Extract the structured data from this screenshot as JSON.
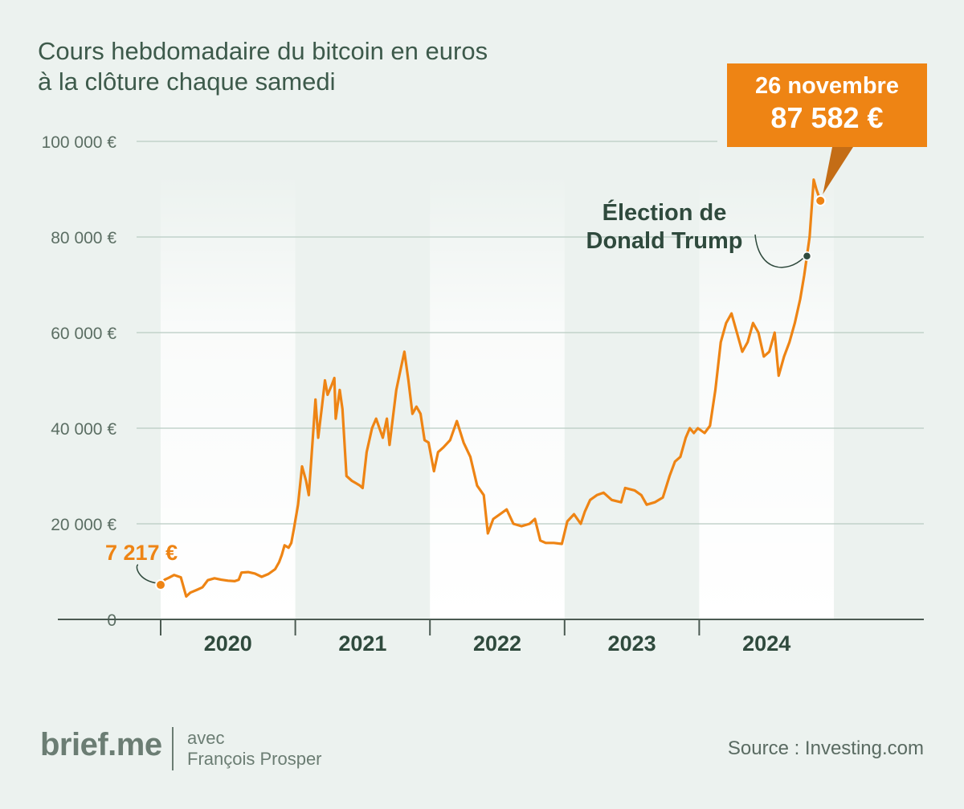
{
  "title": [
    "Cours hebdomadaire du bitcoin en euros",
    "à la clôture chaque samedi"
  ],
  "colors": {
    "line": "#ee8414",
    "accent_dark": "#2f4a3d",
    "background": "#ecf2ef"
  },
  "callout": {
    "date": "26 novembre",
    "value": "87 582 €"
  },
  "start_label": "7 217 €",
  "event_label": [
    "Élection de",
    "Donald Trump"
  ],
  "footer": {
    "logo": "brief.me",
    "with": "avec",
    "author": "François Prosper",
    "source": "Source : Investing.com"
  },
  "chart_data": {
    "type": "line",
    "title": "Cours hebdomadaire du bitcoin en euros à la clôture chaque samedi",
    "xlabel": "",
    "ylabel": "",
    "y_ticks": [
      0,
      20000,
      40000,
      60000,
      80000,
      100000
    ],
    "y_tick_labels": [
      "0",
      "20 000 €",
      "40 000 €",
      "60 000 €",
      "80 000 €",
      "100 000 €"
    ],
    "ylim": [
      0,
      100000
    ],
    "x_ticks": [
      "2020",
      "2021",
      "2022",
      "2023",
      "2024"
    ],
    "x_domain": [
      2020.0,
      2025.0
    ],
    "grid": true,
    "series": [
      {
        "values": [
          [
            2020.0,
            7217
          ],
          [
            2020.03,
            8300
          ],
          [
            2020.06,
            8700
          ],
          [
            2020.1,
            9300
          ],
          [
            2020.15,
            8800
          ],
          [
            2020.19,
            4800
          ],
          [
            2020.22,
            5600
          ],
          [
            2020.27,
            6200
          ],
          [
            2020.31,
            6700
          ],
          [
            2020.35,
            8200
          ],
          [
            2020.4,
            8600
          ],
          [
            2020.45,
            8300
          ],
          [
            2020.5,
            8100
          ],
          [
            2020.55,
            8000
          ],
          [
            2020.58,
            8300
          ],
          [
            2020.6,
            9800
          ],
          [
            2020.65,
            9900
          ],
          [
            2020.7,
            9600
          ],
          [
            2020.75,
            8900
          ],
          [
            2020.8,
            9500
          ],
          [
            2020.85,
            10500
          ],
          [
            2020.88,
            12000
          ],
          [
            2020.9,
            13500
          ],
          [
            2020.92,
            15500
          ],
          [
            2020.95,
            15000
          ],
          [
            2020.97,
            16000
          ],
          [
            2020.99,
            19000
          ],
          [
            2021.02,
            24000
          ],
          [
            2021.05,
            32000
          ],
          [
            2021.08,
            29000
          ],
          [
            2021.1,
            26000
          ],
          [
            2021.13,
            38000
          ],
          [
            2021.15,
            46000
          ],
          [
            2021.17,
            38000
          ],
          [
            2021.2,
            45000
          ],
          [
            2021.22,
            50000
          ],
          [
            2021.24,
            47000
          ],
          [
            2021.27,
            49000
          ],
          [
            2021.29,
            50500
          ],
          [
            2021.3,
            42000
          ],
          [
            2021.33,
            48000
          ],
          [
            2021.35,
            44000
          ],
          [
            2021.38,
            30000
          ],
          [
            2021.42,
            29000
          ],
          [
            2021.45,
            28500
          ],
          [
            2021.48,
            28000
          ],
          [
            2021.5,
            27500
          ],
          [
            2021.53,
            35000
          ],
          [
            2021.57,
            40000
          ],
          [
            2021.6,
            42000
          ],
          [
            2021.65,
            38000
          ],
          [
            2021.68,
            42000
          ],
          [
            2021.7,
            36500
          ],
          [
            2021.75,
            48000
          ],
          [
            2021.78,
            52000
          ],
          [
            2021.81,
            56000
          ],
          [
            2021.84,
            50000
          ],
          [
            2021.87,
            43000
          ],
          [
            2021.9,
            44500
          ],
          [
            2021.93,
            43000
          ],
          [
            2021.96,
            37500
          ],
          [
            2021.99,
            37000
          ],
          [
            2022.03,
            31000
          ],
          [
            2022.06,
            35000
          ],
          [
            2022.1,
            36000
          ],
          [
            2022.15,
            37500
          ],
          [
            2022.2,
            41500
          ],
          [
            2022.25,
            37000
          ],
          [
            2022.3,
            34000
          ],
          [
            2022.35,
            28000
          ],
          [
            2022.4,
            26000
          ],
          [
            2022.43,
            18000
          ],
          [
            2022.47,
            21000
          ],
          [
            2022.52,
            22000
          ],
          [
            2022.57,
            23000
          ],
          [
            2022.62,
            20000
          ],
          [
            2022.68,
            19500
          ],
          [
            2022.74,
            20000
          ],
          [
            2022.78,
            21000
          ],
          [
            2022.82,
            16500
          ],
          [
            2022.86,
            16000
          ],
          [
            2022.92,
            16000
          ],
          [
            2022.98,
            15800
          ],
          [
            2023.02,
            20500
          ],
          [
            2023.07,
            22000
          ],
          [
            2023.12,
            20000
          ],
          [
            2023.15,
            22500
          ],
          [
            2023.19,
            25000
          ],
          [
            2023.24,
            26000
          ],
          [
            2023.29,
            26500
          ],
          [
            2023.35,
            25000
          ],
          [
            2023.42,
            24500
          ],
          [
            2023.45,
            27500
          ],
          [
            2023.52,
            27000
          ],
          [
            2023.57,
            26000
          ],
          [
            2023.61,
            24000
          ],
          [
            2023.67,
            24500
          ],
          [
            2023.73,
            25500
          ],
          [
            2023.78,
            30000
          ],
          [
            2023.82,
            33000
          ],
          [
            2023.86,
            34000
          ],
          [
            2023.9,
            38000
          ],
          [
            2023.93,
            40000
          ],
          [
            2023.96,
            39000
          ],
          [
            2023.99,
            40000
          ],
          [
            2024.04,
            39000
          ],
          [
            2024.08,
            40500
          ],
          [
            2024.12,
            48000
          ],
          [
            2024.16,
            58000
          ],
          [
            2024.2,
            62000
          ],
          [
            2024.24,
            64000
          ],
          [
            2024.28,
            60000
          ],
          [
            2024.32,
            56000
          ],
          [
            2024.36,
            58000
          ],
          [
            2024.4,
            62000
          ],
          [
            2024.44,
            60000
          ],
          [
            2024.48,
            55000
          ],
          [
            2024.52,
            56000
          ],
          [
            2024.56,
            60000
          ],
          [
            2024.59,
            51000
          ],
          [
            2024.63,
            55000
          ],
          [
            2024.67,
            58000
          ],
          [
            2024.71,
            62000
          ],
          [
            2024.75,
            67000
          ],
          [
            2024.78,
            72000
          ],
          [
            2024.82,
            80000
          ],
          [
            2024.85,
            92000
          ],
          [
            2024.87,
            90000
          ],
          [
            2024.9,
            87582
          ]
        ]
      }
    ],
    "annotations": [
      {
        "label": "7 217 €",
        "x": 2020.0,
        "y": 7217
      },
      {
        "label": "Élection de Donald Trump",
        "x": 2024.8,
        "y": 76000
      },
      {
        "label": "26 novembre 87 582 €",
        "x": 2024.9,
        "y": 87582
      }
    ]
  }
}
